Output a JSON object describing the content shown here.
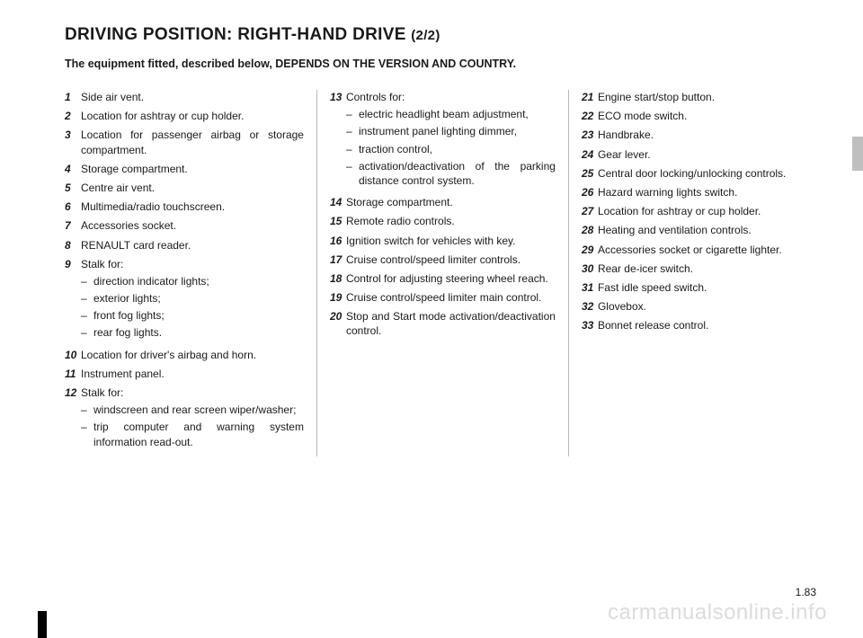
{
  "title_main": "DRIVING POSITION: RIGHT-HAND DRIVE",
  "title_suffix": "(2/2)",
  "subtitle": "The equipment fitted, described below, DEPENDS ON THE VERSION AND COUNTRY.",
  "page_number": "1.83",
  "watermark": "carmanualsonline.info",
  "col1": [
    {
      "n": "1",
      "t": "Side air vent."
    },
    {
      "n": "2",
      "t": "Location for ashtray or cup holder."
    },
    {
      "n": "3",
      "t": "Location for passenger airbag or storage compartment."
    },
    {
      "n": "4",
      "t": "Storage compartment."
    },
    {
      "n": "5",
      "t": "Centre air vent."
    },
    {
      "n": "6",
      "t": "Multimedia/radio touchscreen."
    },
    {
      "n": "7",
      "t": "Accessories socket."
    },
    {
      "n": "8",
      "t": "RENAULT card reader."
    },
    {
      "n": "9",
      "t": "Stalk for:",
      "subs": [
        "direction indicator lights;",
        "exterior lights;",
        "front fog lights;",
        "rear fog lights."
      ]
    },
    {
      "n": "10",
      "t": "Location for driver's airbag and horn."
    },
    {
      "n": "11",
      "t": "Instrument panel."
    },
    {
      "n": "12",
      "t": "Stalk for:",
      "subs": [
        "windscreen and rear screen wiper/washer;",
        "trip computer and warning system information read-out."
      ]
    }
  ],
  "col2": [
    {
      "n": "13",
      "t": "Controls for:",
      "subs": [
        "electric headlight beam adjustment,",
        "instrument panel lighting dimmer,",
        "traction control,",
        "activation/deactivation of the parking distance control system."
      ]
    },
    {
      "n": "14",
      "t": "Storage compartment."
    },
    {
      "n": "15",
      "t": "Remote radio controls."
    },
    {
      "n": "16",
      "t": "Ignition switch for vehicles with key."
    },
    {
      "n": "17",
      "t": "Cruise control/speed limiter controls."
    },
    {
      "n": "18",
      "t": "Control for adjusting steering wheel reach."
    },
    {
      "n": "19",
      "t": "Cruise control/speed limiter main control."
    },
    {
      "n": "20",
      "t": "Stop and Start mode activation/deactivation control."
    }
  ],
  "col3": [
    {
      "n": "21",
      "t": "Engine start/stop button."
    },
    {
      "n": "22",
      "t": "ECO mode switch."
    },
    {
      "n": "23",
      "t": "Handbrake."
    },
    {
      "n": "24",
      "t": "Gear lever."
    },
    {
      "n": "25",
      "t": "Central door locking/unlocking controls."
    },
    {
      "n": "26",
      "t": "Hazard warning lights switch."
    },
    {
      "n": "27",
      "t": "Location for ashtray or cup holder."
    },
    {
      "n": "28",
      "t": "Heating and ventilation controls."
    },
    {
      "n": "29",
      "t": "Accessories socket or cigarette lighter."
    },
    {
      "n": "30",
      "t": "Rear de-icer switch."
    },
    {
      "n": "31",
      "t": "Fast idle speed switch."
    },
    {
      "n": "32",
      "t": "Glovebox."
    },
    {
      "n": "33",
      "t": "Bonnet release control."
    }
  ],
  "colors": {
    "text": "#1a1a1a",
    "divider": "#b8b8b8",
    "watermark": "#dcdcdc",
    "tab_grey": "#bfbfbf",
    "tab_black": "#000000",
    "background": "#ffffff"
  }
}
